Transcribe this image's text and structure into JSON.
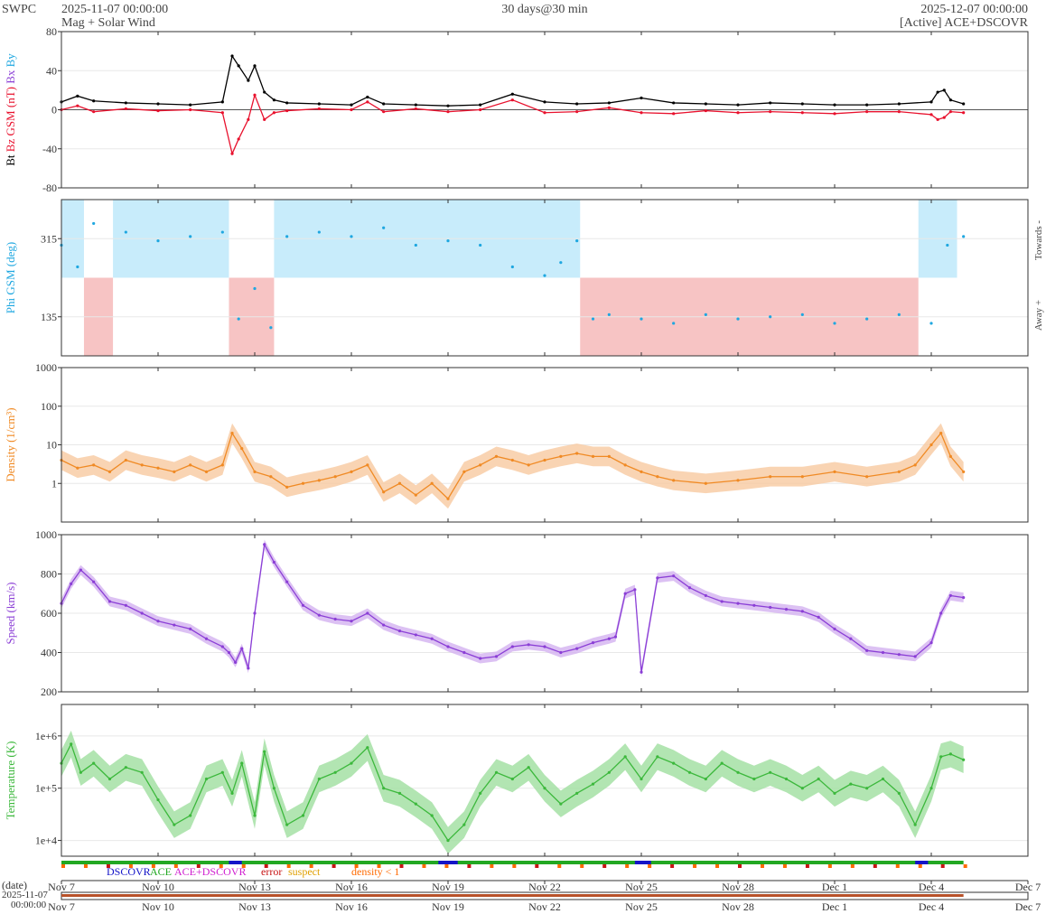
{
  "header": {
    "source": "SWPC",
    "start_time": "2025-11-07 00:00:00",
    "subtitle": "Mag + Solar Wind",
    "span": "30 days@30 min",
    "end_time": "2025-12-07 00:00:00",
    "spacecraft": "[Active] ACE+DSCOVR"
  },
  "chart_data": [
    {
      "type": "line",
      "name": "mag",
      "ylabel_parts": [
        "Bt",
        "Bz GSM (nT)",
        "Bx",
        "By"
      ],
      "ylim": [
        -80,
        80
      ],
      "ticks": [
        -80,
        -40,
        0,
        40,
        80
      ],
      "series": [
        {
          "name": "Bt",
          "color": "#000000",
          "x": [
            7,
            7.5,
            8,
            9,
            10,
            11,
            12,
            12.3,
            12.5,
            12.8,
            13,
            13.3,
            13.6,
            14,
            15,
            16,
            16.5,
            17,
            18,
            19,
            20,
            21,
            22,
            23,
            24,
            25,
            26,
            27,
            28,
            29,
            30,
            31,
            32,
            33,
            34,
            34.2,
            34.4,
            34.6,
            35
          ],
          "values": [
            8,
            14,
            9,
            7,
            6,
            5,
            8,
            55,
            45,
            30,
            45,
            18,
            10,
            7,
            6,
            5,
            13,
            6,
            5,
            4,
            5,
            16,
            8,
            6,
            7,
            12,
            7,
            6,
            5,
            7,
            6,
            5,
            5,
            6,
            8,
            18,
            20,
            10,
            6
          ]
        },
        {
          "name": "Bz GSM",
          "color": "#e8112d",
          "x": [
            7,
            7.5,
            8,
            9,
            10,
            11,
            12,
            12.3,
            12.5,
            12.8,
            13,
            13.3,
            13.6,
            14,
            15,
            16,
            16.5,
            17,
            18,
            19,
            20,
            21,
            22,
            23,
            24,
            25,
            26,
            27,
            28,
            29,
            30,
            31,
            32,
            33,
            34,
            34.2,
            34.4,
            34.6,
            35
          ],
          "values": [
            0,
            4,
            -2,
            1,
            -1,
            0,
            -3,
            -45,
            -30,
            -10,
            15,
            -10,
            -3,
            -1,
            1,
            0,
            8,
            -2,
            1,
            -2,
            0,
            10,
            -3,
            -2,
            2,
            -3,
            -4,
            -1,
            -3,
            -2,
            -3,
            -4,
            -2,
            -2,
            -5,
            -10,
            -8,
            -2,
            -3
          ]
        }
      ],
      "fill_color": "#cfc3e6"
    },
    {
      "type": "scatter",
      "name": "phi",
      "ylabel": "Phi GSM (deg)",
      "right_labels": [
        "Towards -",
        "Away +"
      ],
      "ylim": [
        45,
        405
      ],
      "ticks": [
        135,
        315
      ],
      "series": [
        {
          "name": "Phi GSM",
          "color": "#1fa7e0",
          "x": [
            7,
            7.5,
            8,
            9,
            10,
            11,
            12,
            12.5,
            13,
            13.5,
            14,
            15,
            16,
            17,
            18,
            19,
            20,
            21,
            22,
            22.5,
            23,
            23.5,
            24,
            25,
            26,
            27,
            28,
            29,
            30,
            31,
            32,
            33,
            34,
            34.5,
            35
          ],
          "values": [
            300,
            250,
            350,
            330,
            310,
            320,
            330,
            130,
            200,
            110,
            320,
            330,
            320,
            340,
            300,
            310,
            300,
            250,
            230,
            260,
            310,
            130,
            140,
            130,
            120,
            140,
            130,
            135,
            140,
            120,
            130,
            140,
            120,
            300,
            320
          ]
        }
      ],
      "towards_color": "#c8ecfb",
      "away_color": "#f7c4c4",
      "polarity_segments": [
        {
          "from": 7,
          "to": 7.7,
          "side": "towards"
        },
        {
          "from": 7.7,
          "to": 8.6,
          "side": "away"
        },
        {
          "from": 8.6,
          "to": 12.2,
          "side": "towards"
        },
        {
          "from": 12.2,
          "to": 13.6,
          "side": "away"
        },
        {
          "from": 13.6,
          "to": 23.1,
          "side": "towards"
        },
        {
          "from": 23.1,
          "to": 33.6,
          "side": "away"
        },
        {
          "from": 33.6,
          "to": 34.8,
          "side": "towards"
        }
      ]
    },
    {
      "type": "line",
      "name": "density",
      "ylabel": "Density (1/cm³)",
      "scale": "log",
      "ylim": [
        0.1,
        1000
      ],
      "ticks": [
        1,
        10,
        100,
        1000
      ],
      "series": [
        {
          "name": "Density",
          "color": "#f08a24",
          "x": [
            7,
            7.5,
            8,
            8.5,
            9,
            9.5,
            10,
            10.5,
            11,
            11.5,
            12,
            12.3,
            12.6,
            13,
            13.5,
            14,
            14.5,
            15,
            15.5,
            16,
            16.5,
            17,
            17.5,
            18,
            18.5,
            19,
            19.5,
            20,
            20.5,
            21,
            21.5,
            22,
            22.5,
            23,
            23.5,
            24,
            24.5,
            25,
            25.5,
            26,
            27,
            28,
            29,
            30,
            31,
            32,
            33,
            33.5,
            34,
            34.3,
            34.6,
            35
          ],
          "values": [
            4,
            2.5,
            3,
            2,
            4,
            3,
            2.5,
            2,
            3,
            2,
            3,
            20,
            8,
            2,
            1.5,
            0.8,
            1,
            1.2,
            1.5,
            2,
            3,
            0.6,
            1,
            0.5,
            1,
            0.4,
            2,
            3,
            5,
            4,
            3,
            4,
            5,
            6,
            5,
            5,
            3,
            2,
            1.5,
            1.2,
            1,
            1.2,
            1.5,
            1.5,
            2,
            1.5,
            2,
            3,
            10,
            20,
            5,
            2
          ]
        }
      ],
      "fill_color": "#f8c9a0"
    },
    {
      "type": "line",
      "name": "speed",
      "ylabel": "Speed (km/s)",
      "ylim": [
        200,
        1000
      ],
      "ticks": [
        200,
        400,
        600,
        800,
        1000
      ],
      "series": [
        {
          "name": "Speed",
          "color": "#8b3fd6",
          "x": [
            7,
            7.3,
            7.6,
            8,
            8.5,
            9,
            9.5,
            10,
            10.5,
            11,
            11.5,
            12,
            12.2,
            12.4,
            12.6,
            12.8,
            13,
            13.3,
            13.6,
            14,
            14.5,
            15,
            15.5,
            16,
            16.5,
            17,
            17.5,
            18,
            18.5,
            19,
            19.5,
            20,
            20.5,
            21,
            21.5,
            22,
            22.5,
            23,
            23.5,
            24,
            24.2,
            24.5,
            24.8,
            25,
            25.5,
            26,
            26.5,
            27,
            27.5,
            28,
            28.5,
            29,
            29.5,
            30,
            30.5,
            31,
            31.5,
            32,
            32.5,
            33,
            33.5,
            34,
            34.3,
            34.6,
            35
          ],
          "values": [
            650,
            750,
            820,
            760,
            660,
            640,
            600,
            560,
            540,
            520,
            470,
            430,
            400,
            350,
            420,
            320,
            600,
            950,
            860,
            760,
            640,
            590,
            570,
            560,
            600,
            540,
            510,
            490,
            470,
            430,
            400,
            370,
            380,
            430,
            440,
            430,
            400,
            420,
            450,
            470,
            480,
            700,
            720,
            300,
            780,
            790,
            730,
            690,
            660,
            650,
            640,
            630,
            620,
            610,
            580,
            520,
            470,
            410,
            400,
            390,
            380,
            450,
            600,
            690,
            680
          ]
        }
      ],
      "fill_color": "#d3b2f0"
    },
    {
      "type": "line",
      "name": "temperature",
      "ylabel": "Temperature (K)",
      "scale": "log",
      "ylim": [
        5000,
        4000000
      ],
      "ticks": [
        10000,
        100000,
        1000000
      ],
      "tick_labels": [
        "1e+4",
        "1e+5",
        "1e+6"
      ],
      "series": [
        {
          "name": "Temperature",
          "color": "#3cb83c",
          "x": [
            7,
            7.3,
            7.6,
            8,
            8.5,
            9,
            9.5,
            10,
            10.5,
            11,
            11.5,
            12,
            12.3,
            12.6,
            13,
            13.3,
            13.6,
            14,
            14.5,
            15,
            15.5,
            16,
            16.5,
            17,
            17.5,
            18,
            18.5,
            19,
            19.5,
            20,
            20.5,
            21,
            21.5,
            22,
            22.5,
            23,
            23.5,
            24,
            24.5,
            25,
            25.5,
            26,
            26.5,
            27,
            27.5,
            28,
            28.5,
            29,
            29.5,
            30,
            30.5,
            31,
            31.5,
            32,
            32.5,
            33,
            33.5,
            34,
            34.3,
            34.6,
            35
          ],
          "values": [
            300000,
            700000,
            200000,
            300000,
            150000,
            250000,
            200000,
            60000,
            20000,
            30000,
            150000,
            200000,
            80000,
            300000,
            30000,
            500000,
            100000,
            20000,
            30000,
            150000,
            200000,
            300000,
            600000,
            100000,
            80000,
            50000,
            30000,
            10000,
            20000,
            80000,
            200000,
            150000,
            250000,
            100000,
            50000,
            80000,
            120000,
            200000,
            400000,
            150000,
            400000,
            300000,
            200000,
            150000,
            300000,
            200000,
            150000,
            200000,
            150000,
            100000,
            150000,
            80000,
            120000,
            100000,
            150000,
            80000,
            20000,
            100000,
            400000,
            450000,
            350000
          ]
        }
      ],
      "fill_color": "#9fdf9f"
    }
  ],
  "source_legend": [
    {
      "label": "DSCOVR",
      "color": "#1414c8"
    },
    {
      "label": "ACE",
      "color": "#22a822"
    },
    {
      "label": "ACE+DSCOVR",
      "color": "#d020d0"
    },
    {
      "label": "error",
      "color": "#c81414"
    },
    {
      "label": "suspect",
      "color": "#e0a000"
    },
    {
      "label": "density < 1",
      "color": "#ff6a00"
    }
  ],
  "x_axis": {
    "range_days": [
      7,
      37
    ],
    "tick_days": [
      7,
      10,
      13,
      16,
      19,
      22,
      25,
      28,
      31,
      34,
      37
    ],
    "tick_labels": [
      "Nov 7",
      "Nov 10",
      "Nov 13",
      "Nov 16",
      "Nov 19",
      "Nov 22",
      "Nov 25",
      "Nov 28",
      "Dec 1",
      "Dec 4",
      "Dec 7"
    ],
    "date_label": "(date)",
    "navigator_start_date": "2025-11-07",
    "navigator_start_time": "00:00:00"
  }
}
